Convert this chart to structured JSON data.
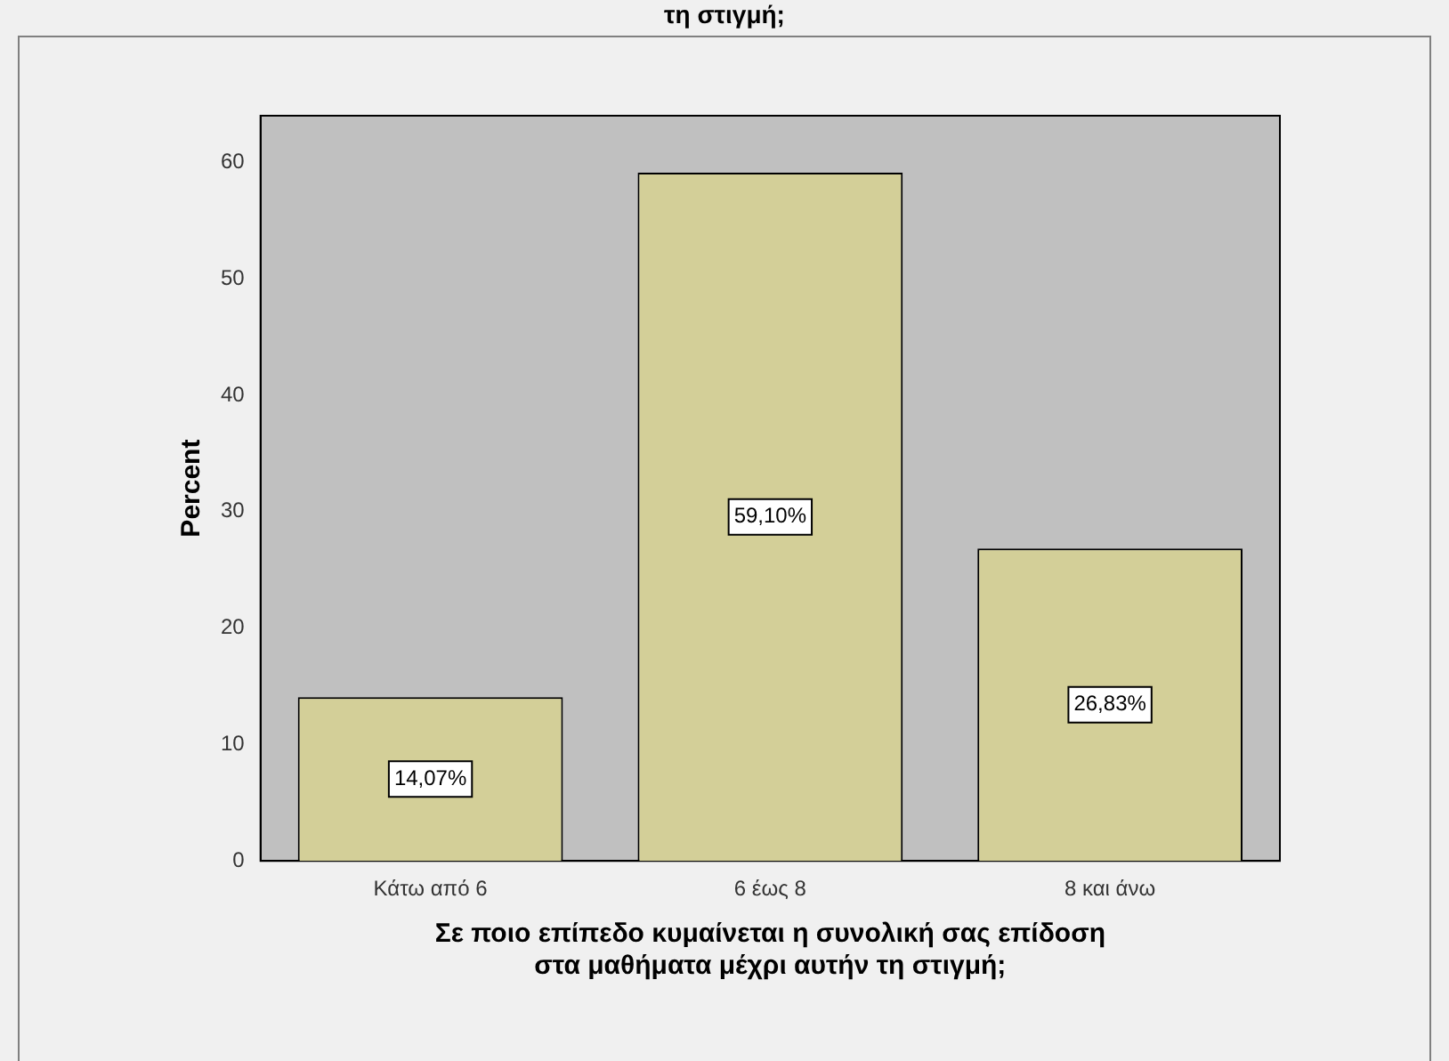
{
  "chart_data": {
    "type": "bar",
    "title": "τη στιγμή;",
    "xlabel": "Σε ποιο επίπεδο κυμαίνεται η συνολική σας επίδοση στα μαθήματα μέχρι αυτήν τη στιγμή;",
    "ylabel": "Percent",
    "categories": [
      "Κάτω από 6",
      "6 έως 8",
      "8 και άνω"
    ],
    "values": [
      14.07,
      59.1,
      26.83
    ],
    "value_labels": [
      "14,07%",
      "59,10%",
      "26,83%"
    ],
    "color": "#d3cf98",
    "ylim": [
      0,
      64
    ],
    "yticks": [
      0,
      10,
      20,
      30,
      40,
      50,
      60
    ],
    "grid": false,
    "legend": false
  }
}
